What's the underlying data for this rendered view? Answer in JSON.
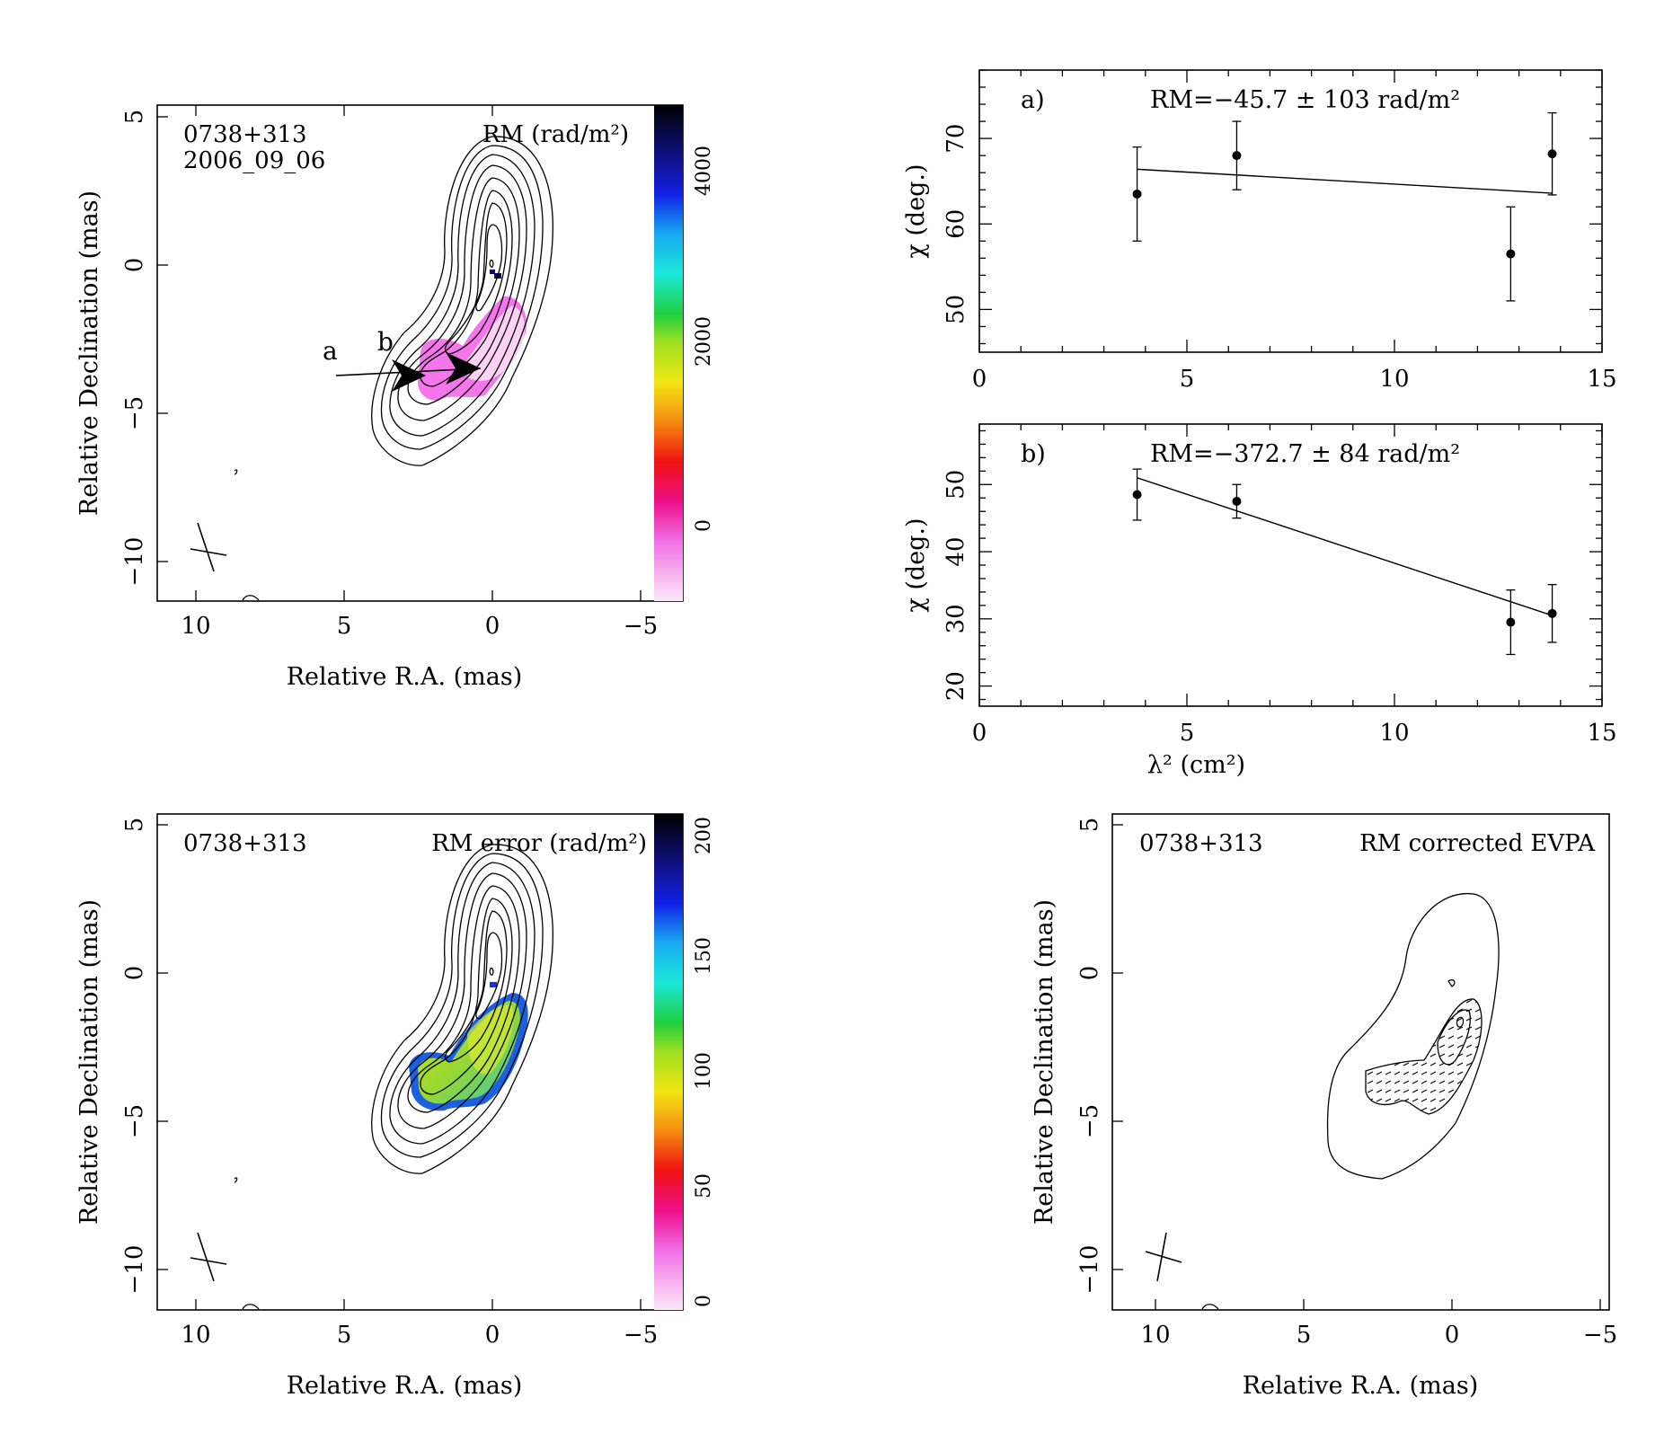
{
  "panels": {
    "rm_map": {
      "source": "0738+313",
      "epoch": "2006_09_06",
      "title": "RM (rad/m²)",
      "xlabel": "Relative R.A. (mas)",
      "ylabel": "Relative Declination (mas)",
      "xticks": [
        "10",
        "5",
        "0",
        "−5"
      ],
      "yticks": [
        "5",
        "0",
        "−5",
        "−10"
      ],
      "colorbar_ticks": [
        "4000",
        "2000",
        "0"
      ],
      "marker_a": "a",
      "marker_b": "b"
    },
    "rm_error_map": {
      "source": "0738+313",
      "title": "RM error (rad/m²)",
      "xlabel": "Relative R.A. (mas)",
      "ylabel": "Relative Declination (mas)",
      "xticks": [
        "10",
        "5",
        "0",
        "−5"
      ],
      "yticks": [
        "5",
        "0",
        "−5",
        "−10"
      ],
      "colorbar_ticks": [
        "200",
        "150",
        "100",
        "50",
        "0"
      ]
    },
    "evpa_map": {
      "source": "0738+313",
      "title": "RM corrected EVPA",
      "xlabel": "Relative R.A. (mas)",
      "ylabel": "Relative Declination (mas)",
      "xticks": [
        "10",
        "5",
        "0",
        "−5"
      ],
      "yticks": [
        "5",
        "0",
        "−5",
        "−10"
      ]
    }
  },
  "chart_data": [
    {
      "type": "scatter",
      "panel": "a)",
      "annotation": "RM=−45.7 ± 103 rad/m²",
      "xlabel": "",
      "ylabel": "χ (deg.)",
      "xlim": [
        0,
        15
      ],
      "ylim": [
        45,
        78
      ],
      "xticks": [
        "0",
        "5",
        "10",
        "15"
      ],
      "yticks": [
        "50",
        "60",
        "70"
      ],
      "x": [
        3.8,
        6.2,
        12.8,
        13.8
      ],
      "y": [
        63.5,
        68.0,
        56.5,
        68.2
      ],
      "yerr": [
        5.5,
        4.0,
        5.5,
        4.8
      ],
      "fit": {
        "x": [
          3.8,
          13.8
        ],
        "y": [
          66.4,
          63.6
        ]
      }
    },
    {
      "type": "scatter",
      "panel": "b)",
      "annotation": "RM=−372.7 ± 84 rad/m²",
      "xlabel": "λ² (cm²)",
      "ylabel": "χ (deg.)",
      "xlim": [
        0,
        15
      ],
      "ylim": [
        17,
        59
      ],
      "xticks": [
        "0",
        "5",
        "10",
        "15"
      ],
      "yticks": [
        "20",
        "30",
        "40",
        "50"
      ],
      "x": [
        3.8,
        6.2,
        12.8,
        13.8
      ],
      "y": [
        48.5,
        47.5,
        29.5,
        30.8
      ],
      "yerr": [
        3.8,
        2.5,
        4.8,
        4.3
      ],
      "fit": {
        "x": [
          3.8,
          13.8
        ],
        "y": [
          51.0,
          30.5
        ]
      }
    }
  ]
}
